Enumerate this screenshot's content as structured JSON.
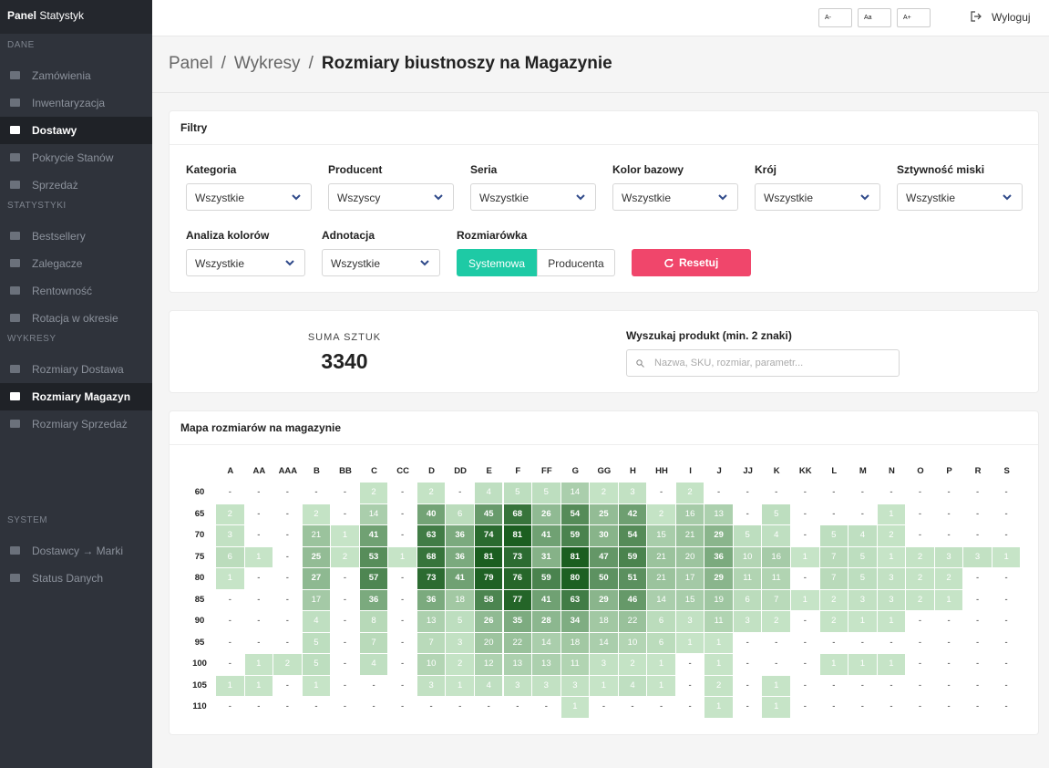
{
  "sidebar": {
    "brand_bold": "Panel",
    "brand": "Statystyk",
    "sections": [
      {
        "title": "DANE",
        "items": [
          {
            "label": "Zamówienia"
          },
          {
            "label": "Inwentaryzacja"
          },
          {
            "label": "Dostawy",
            "active": true
          },
          {
            "label": "Pokrycie Stanów"
          },
          {
            "label": "Sprzedaż"
          }
        ]
      },
      {
        "title": "STATYSTYKI",
        "items": [
          {
            "label": "Bestsellery"
          },
          {
            "label": "Zalegacze"
          },
          {
            "label": "Rentowność"
          },
          {
            "label": "Rotacja w okresie"
          }
        ]
      },
      {
        "title": "WYKRESY",
        "items": [
          {
            "label": "Rozmiary Dostawa"
          },
          {
            "label": "Rozmiary Magazyn",
            "active": true
          },
          {
            "label": "Rozmiary Sprzedaż"
          }
        ]
      },
      {
        "title": "SYSTEM",
        "items": [
          {
            "label": "Dostawcy → Marki"
          },
          {
            "label": "Status Danych"
          }
        ]
      }
    ]
  },
  "topbar": {
    "font_buttons": [
      "A-",
      "Aa",
      "A+"
    ],
    "logout": "Wyloguj"
  },
  "breadcrumb": {
    "items": [
      "Panel",
      "Wykresy",
      "Rozmiary biustnoszy na Magazynie"
    ],
    "separator": "/"
  },
  "filters": {
    "title": "Filtry",
    "fields": [
      {
        "label": "Kategoria",
        "value": "Wszystkie"
      },
      {
        "label": "Producent",
        "value": "Wszyscy"
      },
      {
        "label": "Seria",
        "value": "Wszystkie"
      },
      {
        "label": "Kolor bazowy",
        "value": "Wszystkie"
      },
      {
        "label": "Krój",
        "value": "Wszystkie"
      },
      {
        "label": "Sztywność miski",
        "value": "Wszystkie"
      },
      {
        "label": "Analiza kolorów",
        "value": "Wszystkie"
      },
      {
        "label": "Adnotacja",
        "value": "Wszystkie"
      }
    ],
    "size_system": {
      "label": "Rozmiarówka",
      "options": [
        "Systemowa",
        "Producenta"
      ],
      "active": 0
    },
    "reset": "Resetuj"
  },
  "summary": {
    "label": "SUMA SZTUK",
    "total": 3340,
    "search_label": "Wyszukaj produkt (min. 2 znaki)",
    "search_placeholder": "Nazwa, SKU, rozmiar, parametr..."
  },
  "heatmap": {
    "title": "Mapa rozmiarów na magazynie",
    "columns": [
      "A",
      "AA",
      "AAA",
      "B",
      "BB",
      "C",
      "CC",
      "D",
      "DD",
      "E",
      "F",
      "FF",
      "G",
      "GG",
      "H",
      "HH",
      "I",
      "J",
      "JJ",
      "K",
      "KK",
      "L",
      "M",
      "N",
      "O",
      "P",
      "R",
      "S"
    ],
    "rows": [
      {
        "label": "60",
        "cells": [
          "-",
          "-",
          "-",
          "-",
          "-",
          2,
          "-",
          2,
          "-",
          4,
          5,
          5,
          14,
          2,
          3,
          "-",
          2,
          "-",
          "-",
          "-",
          "-",
          "-",
          "-",
          "-",
          "-",
          "-",
          "-",
          "-"
        ]
      },
      {
        "label": "65",
        "cells": [
          2,
          "-",
          "-",
          2,
          "-",
          14,
          "-",
          40,
          6,
          45,
          68,
          26,
          54,
          25,
          42,
          2,
          16,
          13,
          "-",
          5,
          "-",
          "-",
          "-",
          1,
          "-",
          "-",
          "-",
          "-"
        ]
      },
      {
        "label": "70",
        "cells": [
          3,
          "-",
          "-",
          21,
          1,
          41,
          "-",
          63,
          36,
          74,
          81,
          41,
          59,
          30,
          54,
          15,
          21,
          29,
          5,
          4,
          "-",
          5,
          4,
          2,
          "-",
          "-",
          "-",
          "-"
        ]
      },
      {
        "label": "75",
        "cells": [
          6,
          1,
          "-",
          25,
          2,
          53,
          1,
          68,
          36,
          81,
          73,
          31,
          81,
          47,
          59,
          21,
          20,
          36,
          10,
          16,
          1,
          7,
          5,
          1,
          2,
          3,
          3,
          1
        ]
      },
      {
        "label": "80",
        "cells": [
          1,
          "-",
          "-",
          27,
          "-",
          57,
          "-",
          73,
          41,
          79,
          76,
          59,
          80,
          50,
          51,
          21,
          17,
          29,
          11,
          11,
          "-",
          7,
          5,
          3,
          2,
          2,
          "-",
          "-"
        ]
      },
      {
        "label": "85",
        "cells": [
          "-",
          "-",
          "-",
          17,
          "-",
          36,
          "-",
          36,
          18,
          58,
          77,
          41,
          63,
          29,
          46,
          14,
          15,
          19,
          6,
          7,
          1,
          2,
          3,
          3,
          2,
          1,
          "-",
          "-"
        ]
      },
      {
        "label": "90",
        "cells": [
          "-",
          "-",
          "-",
          4,
          "-",
          8,
          "-",
          13,
          5,
          26,
          35,
          28,
          34,
          18,
          22,
          6,
          3,
          11,
          3,
          2,
          "-",
          2,
          1,
          1,
          "-",
          "-",
          "-",
          "-"
        ]
      },
      {
        "label": "95",
        "cells": [
          "-",
          "-",
          "-",
          5,
          "-",
          7,
          "-",
          7,
          3,
          20,
          22,
          14,
          18,
          14,
          10,
          6,
          1,
          1,
          "-",
          "-",
          "-",
          "-",
          "-",
          "-",
          "-",
          "-",
          "-",
          "-"
        ]
      },
      {
        "label": "100",
        "cells": [
          "-",
          1,
          2,
          5,
          "-",
          4,
          "-",
          10,
          2,
          12,
          13,
          13,
          11,
          3,
          2,
          1,
          "-",
          1,
          "-",
          "-",
          "-",
          1,
          1,
          1,
          "-",
          "-",
          "-",
          "-"
        ]
      },
      {
        "label": "105",
        "cells": [
          1,
          1,
          "-",
          1,
          "-",
          "-",
          "-",
          3,
          1,
          4,
          3,
          3,
          3,
          1,
          4,
          1,
          "-",
          2,
          "-",
          1,
          "-",
          "-",
          "-",
          "-",
          "-",
          "-",
          "-",
          "-"
        ]
      },
      {
        "label": "110",
        "cells": [
          "-",
          "-",
          "-",
          "-",
          "-",
          "-",
          "-",
          "-",
          "-",
          "-",
          "-",
          "-",
          1,
          "-",
          "-",
          "-",
          "-",
          1,
          "-",
          1,
          "-",
          "-",
          "-",
          "-",
          "-",
          "-",
          "-",
          "-"
        ]
      }
    ]
  }
}
